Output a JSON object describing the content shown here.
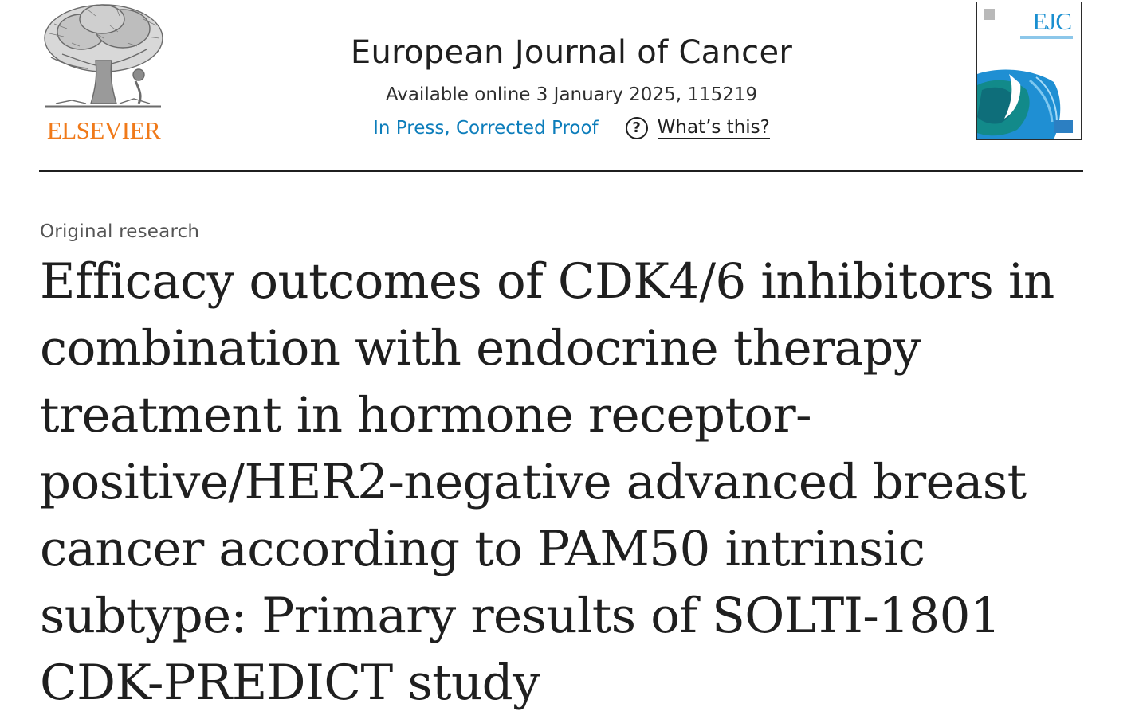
{
  "header": {
    "publisher": "ELSEVIER",
    "journal_title": "European Journal of Cancer",
    "availability": "Available online 3 January 2025, 115219",
    "status_link": "In Press, Corrected Proof",
    "help_label": "What’s this?",
    "help_icon": "question-circle-icon",
    "cover_abbrev": "EJC"
  },
  "article": {
    "type": "Original research",
    "title": "Efficacy outcomes of CDK4/6 inhibitors in combination with endocrine therapy treatment in hormone receptor-positive/HER2-negative advanced breast cancer according to PAM50 intrinsic subtype: Primary results of SOLTI-1801 CDK-PREDICT study"
  },
  "colors": {
    "publisher_orange": "#f07a1a",
    "link_blue": "#0c7dbb",
    "cover_blue": "#1a8fd0",
    "text": "#1f1f1f"
  }
}
